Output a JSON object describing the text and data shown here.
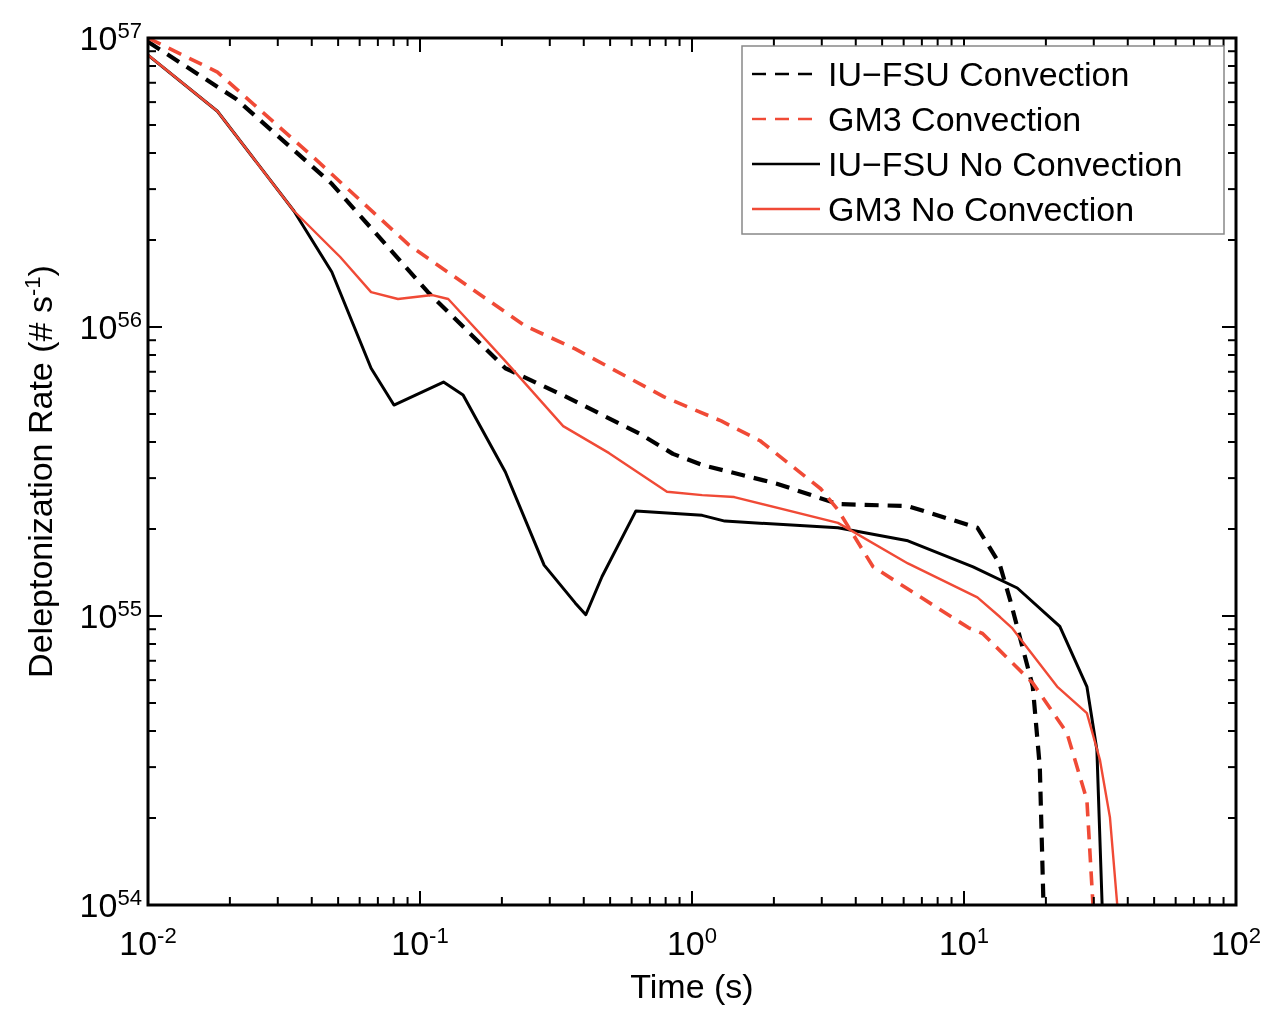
{
  "chart_data": {
    "type": "line",
    "xlabel": "Time (s)",
    "ylabel": "Deleptonization Rate (# s$^{-1}$)",
    "log": "xy",
    "legend": "top right",
    "grid": false,
    "xlim": [
      0.01,
      100
    ],
    "ylim": [
      1e+54,
      1e+57
    ],
    "xticks": [
      {
        "value": 0.01,
        "label": "10$^{-2}$"
      },
      {
        "value": 0.02,
        "label": null
      },
      {
        "value": 0.03,
        "label": null
      },
      {
        "value": 0.04,
        "label": null
      },
      {
        "value": 0.05,
        "label": null
      },
      {
        "value": 0.06,
        "label": null
      },
      {
        "value": 0.07,
        "label": null
      },
      {
        "value": 0.08,
        "label": null
      },
      {
        "value": 0.09,
        "label": null
      },
      {
        "value": 0.1,
        "label": "10$^{-1}$"
      },
      {
        "value": 0.2,
        "label": null
      },
      {
        "value": 0.3,
        "label": null
      },
      {
        "value": 0.4,
        "label": null
      },
      {
        "value": 0.5,
        "label": null
      },
      {
        "value": 0.6,
        "label": null
      },
      {
        "value": 0.7,
        "label": null
      },
      {
        "value": 0.8,
        "label": null
      },
      {
        "value": 0.9,
        "label": null
      },
      {
        "value": 1,
        "label": "10$^{0}$"
      },
      {
        "value": 2,
        "label": null
      },
      {
        "value": 3,
        "label": null
      },
      {
        "value": 4,
        "label": null
      },
      {
        "value": 5,
        "label": null
      },
      {
        "value": 6,
        "label": null
      },
      {
        "value": 7,
        "label": null
      },
      {
        "value": 8,
        "label": null
      },
      {
        "value": 9,
        "label": null
      },
      {
        "value": 10,
        "label": "10$^{1}$"
      },
      {
        "value": 20,
        "label": null
      },
      {
        "value": 30,
        "label": null
      },
      {
        "value": 40,
        "label": null
      },
      {
        "value": 50,
        "label": null
      },
      {
        "value": 60,
        "label": null
      },
      {
        "value": 70,
        "label": null
      },
      {
        "value": 80,
        "label": null
      },
      {
        "value": 90,
        "label": null
      },
      {
        "value": 100,
        "label": "10$^{2}$"
      }
    ],
    "yticks": [
      {
        "value": 1e+54,
        "label": "10$^{54}$"
      },
      {
        "value": 2e+54,
        "label": null
      },
      {
        "value": 3e+54,
        "label": null
      },
      {
        "value": 4e+54,
        "label": null
      },
      {
        "value": 5e+54,
        "label": null
      },
      {
        "value": 6e+54,
        "label": null
      },
      {
        "value": 7e+54,
        "label": null
      },
      {
        "value": 8e+54,
        "label": null
      },
      {
        "value": 9e+54,
        "label": null
      },
      {
        "value": 1e+55,
        "label": "10$^{55}$"
      },
      {
        "value": 2e+55,
        "label": null
      },
      {
        "value": 3e+55,
        "label": null
      },
      {
        "value": 4e+55,
        "label": null
      },
      {
        "value": 5e+55,
        "label": null
      },
      {
        "value": 6e+55,
        "label": null
      },
      {
        "value": 7e+55,
        "label": null
      },
      {
        "value": 8e+55,
        "label": null
      },
      {
        "value": 9e+55,
        "label": null
      },
      {
        "value": 1e+56,
        "label": "10$^{56}$"
      },
      {
        "value": 2e+56,
        "label": null
      },
      {
        "value": 3e+56,
        "label": null
      },
      {
        "value": 4e+56,
        "label": null
      },
      {
        "value": 5e+56,
        "label": null
      },
      {
        "value": 6e+56,
        "label": null
      },
      {
        "value": 7e+56,
        "label": null
      },
      {
        "value": 8e+56,
        "label": null
      },
      {
        "value": 9e+56,
        "label": null
      },
      {
        "value": 1e+57,
        "label": "10$^{57}$"
      }
    ],
    "series": [
      {
        "name": "IU−FSU Convection",
        "color": "#000000",
        "line_style": "dashed",
        "x": [
          0.01,
          0.0211,
          0.0474,
          0.107,
          0.206,
          0.336,
          0.644,
          0.851,
          1.09,
          2.05,
          3.44,
          6.22,
          11.2,
          13.5,
          14.8,
          17.9,
          19.0,
          19.6
        ],
        "values": [
          9.7e+56,
          6.15e+56,
          3.13e+56,
          1.32e+56,
          7.2e+55,
          5.8e+55,
          4.27e+55,
          3.64e+55,
          3.33e+55,
          2.87e+55,
          2.44e+55,
          2.4e+55,
          2.02e+55,
          1.52e+55,
          1.13e+55,
          5.7e+54,
          3e+54,
          1e+54
        ]
      },
      {
        "name": "GM3 Convection",
        "color": "#f04a36",
        "line_style": "dashed",
        "x": [
          0.01,
          0.018,
          0.0405,
          0.0912,
          0.243,
          0.372,
          0.789,
          1.28,
          1.78,
          2.98,
          3.44,
          4.63,
          6.22,
          10.4,
          11.7,
          17.9,
          23.9,
          28.3,
          29.8
        ],
        "values": [
          1e+57,
          7.62e+56,
          3.87e+56,
          1.92e+56,
          1.01e+56,
          8.4e+55,
          5.73e+55,
          4.73e+55,
          4.04e+55,
          2.75e+55,
          2.33e+55,
          1.48e+55,
          1.24e+55,
          9.1e+54,
          8.7e+54,
          5.86e+54,
          3.94e+54,
          2.31e+54,
          1e+54
        ]
      },
      {
        "name": "IU−FSU No Convection",
        "color": "#000000",
        "line_style": "solid",
        "x": [
          0.01,
          0.018,
          0.0344,
          0.0474,
          0.0661,
          0.0802,
          0.122,
          0.144,
          0.206,
          0.286,
          0.372,
          0.407,
          0.467,
          0.622,
          1.09,
          1.32,
          3.44,
          6.22,
          10.8,
          15.7,
          22.5,
          28.3,
          30.8,
          32.2
        ],
        "values": [
          8.73e+56,
          5.58e+56,
          2.52e+56,
          1.55e+56,
          7.2e+55,
          5.37e+55,
          6.45e+55,
          5.82e+55,
          3.15e+55,
          1.5e+55,
          1.11e+55,
          1.01e+55,
          1.37e+55,
          2.31e+55,
          2.23e+55,
          2.13e+55,
          2.02e+55,
          1.82e+55,
          1.48e+55,
          1.25e+55,
          9.2e+54,
          5.7e+54,
          3.44e+54,
          1e+54
        ]
      },
      {
        "name": "GM3 No Convection",
        "color": "#f04a36",
        "line_style": "solid",
        "x": [
          0.01,
          0.018,
          0.0344,
          0.0508,
          0.0661,
          0.083,
          0.111,
          0.127,
          0.206,
          0.336,
          0.496,
          0.809,
          1.09,
          1.43,
          3.44,
          6.22,
          11.2,
          13.6,
          15.0,
          22.0,
          28.3,
          31.6,
          34.4,
          36.6
        ],
        "values": [
          8.73e+56,
          5.58e+56,
          2.52e+56,
          1.75e+56,
          1.32e+56,
          1.25e+56,
          1.29e+56,
          1.25e+56,
          7.62e+55,
          4.54e+55,
          3.66e+55,
          2.69e+55,
          2.62e+55,
          2.58e+55,
          2.1e+55,
          1.52e+55,
          1.16e+55,
          9.9e+54,
          9.1e+54,
          5.7e+54,
          4.61e+54,
          3.18e+54,
          2.01e+54,
          1e+54
        ]
      }
    ]
  }
}
